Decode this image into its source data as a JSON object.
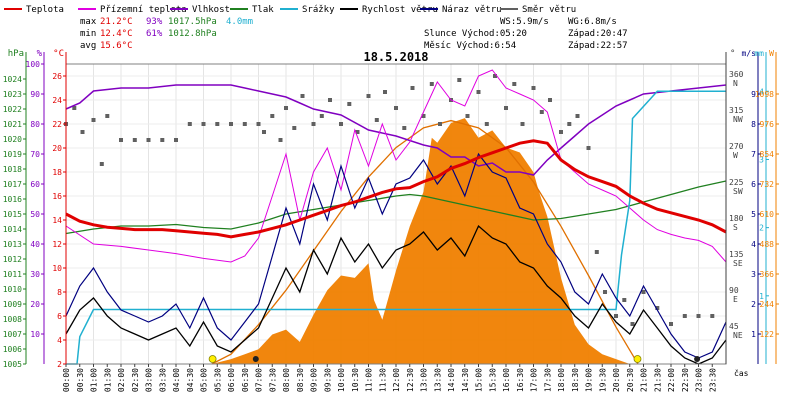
{
  "chart_data": {
    "type": "line",
    "title": "18.5.2018",
    "legend": [
      {
        "key": "temp",
        "label": "Teplota",
        "color": "#e00000"
      },
      {
        "key": "ground",
        "label": "Přízemní teplota",
        "color": "#e000e0"
      },
      {
        "key": "hum",
        "label": "Vlhkost",
        "color": "#8000c0"
      },
      {
        "key": "press",
        "label": "Tlak",
        "color": "#208020"
      },
      {
        "key": "rain",
        "label": "Srážky",
        "color": "#20b0d0"
      },
      {
        "key": "wind",
        "label": "Rychlost větru",
        "color": "#000000"
      },
      {
        "key": "gust",
        "label": "Náraz větru",
        "color": "#000080"
      },
      {
        "key": "dir",
        "label": "Směr větru",
        "color": "#606060"
      }
    ],
    "stats": {
      "max_label": "max",
      "min_label": "min",
      "avg_label": "avg",
      "temp_max": "21.2°C",
      "temp_min": "12.4°C",
      "temp_avg": "15.6°C",
      "hum_max": "93%",
      "hum_min": "61%",
      "press_max": "1017.5hPa",
      "press_min": "1012.8hPa",
      "rain_total": "4.0mm"
    },
    "info": {
      "ws": "WS:5.9m/s",
      "wg": "WG:6.8m/s",
      "sun": "Slunce Východ:05:20",
      "sunset": "Západ:20:47",
      "moon": "Měsíc Východ:6:54",
      "moonset": "Západ:22:57"
    },
    "x_label": "čas",
    "x_ticks": [
      "00:00",
      "00:30",
      "01:00",
      "01:30",
      "02:00",
      "02:30",
      "03:00",
      "03:30",
      "04:00",
      "04:30",
      "05:00",
      "05:30",
      "06:00",
      "06:30",
      "07:00",
      "07:30",
      "08:00",
      "08:30",
      "09:00",
      "09:30",
      "10:00",
      "10:30",
      "11:00",
      "11:30",
      "12:00",
      "12:30",
      "13:00",
      "13:30",
      "14:00",
      "14:30",
      "15:00",
      "15:30",
      "16:00",
      "16:30",
      "17:00",
      "17:30",
      "18:00",
      "18:30",
      "19:00",
      "19:30",
      "20:00",
      "20:30",
      "21:00",
      "21:30",
      "22:00",
      "22:30",
      "23:00",
      "23:30"
    ],
    "axes_left": {
      "hpa_unit": "hPa",
      "hpa_range": [
        1005,
        1025
      ],
      "hpa_ticks": [
        1005,
        1006,
        1007,
        1008,
        1009,
        1010,
        1011,
        1012,
        1013,
        1014,
        1015,
        1016,
        1017,
        1018,
        1019,
        1020,
        1021,
        1022,
        1023,
        1024
      ],
      "pct_unit": "%",
      "pct_range": [
        0,
        100
      ],
      "pct_ticks": [
        10,
        20,
        30,
        40,
        50,
        60,
        70,
        80,
        90,
        100
      ],
      "temp_unit": "°C",
      "temp_range": [
        2,
        27
      ],
      "temp_ticks": [
        2,
        4,
        6,
        8,
        10,
        12,
        14,
        16,
        18,
        20,
        22,
        24,
        26
      ]
    },
    "axes_right": {
      "deg_unit": "°",
      "deg_ticks": [
        {
          "v": 45,
          "t": "45",
          "d": "NE"
        },
        {
          "v": 90,
          "t": "90",
          "d": "E"
        },
        {
          "v": 135,
          "t": "135",
          "d": "SE"
        },
        {
          "v": 180,
          "t": "180",
          "d": "S"
        },
        {
          "v": 225,
          "t": "225",
          "d": "SW"
        },
        {
          "v": 270,
          "t": "270",
          "d": "W"
        },
        {
          "v": 315,
          "t": "315",
          "d": "NW"
        },
        {
          "v": 360,
          "t": "360",
          "d": "N"
        }
      ],
      "ms_unit": "m/s",
      "ms_range": [
        0,
        10
      ],
      "ms_ticks": [
        1,
        2,
        3,
        4,
        5,
        6,
        7,
        8,
        9
      ],
      "mm_unit": "mm",
      "mm_range": [
        0,
        4.4
      ],
      "mm_ticks": [
        1,
        2,
        3,
        4
      ],
      "w_unit": "W",
      "w_ticks": [
        122,
        244,
        366,
        488,
        610,
        732,
        854,
        976,
        1098
      ]
    },
    "series": {
      "temp": {
        "x": [
          0,
          0.5,
          1,
          1.5,
          2,
          2.5,
          3,
          3.5,
          4,
          4.5,
          5,
          5.5,
          6,
          6.5,
          7,
          7.5,
          8,
          8.5,
          9,
          9.5,
          10,
          10.5,
          11,
          11.5,
          12,
          12.5,
          13,
          13.5,
          14,
          14.5,
          15,
          15.5,
          16,
          16.5,
          17,
          17.5,
          18,
          18.5,
          19,
          19.5,
          20,
          20.5,
          21,
          21.5,
          22,
          22.5,
          23,
          23.5,
          24
        ],
        "y": [
          14.5,
          13.9,
          13.6,
          13.4,
          13.3,
          13.2,
          13.2,
          13.2,
          13.1,
          13.0,
          12.9,
          12.8,
          12.6,
          12.8,
          13.0,
          13.3,
          13.6,
          14.0,
          14.4,
          14.8,
          15.2,
          15.5,
          15.9,
          16.3,
          16.6,
          16.7,
          17.2,
          17.6,
          18.3,
          18.7,
          19.2,
          19.6,
          20.0,
          20.4,
          20.6,
          20.4,
          19.0,
          18.2,
          17.6,
          17.2,
          16.8,
          16.0,
          15.4,
          14.9,
          14.6,
          14.3,
          14.0,
          13.6,
          13.0
        ]
      },
      "ground": {
        "x": [
          0,
          1,
          2,
          3,
          4,
          5,
          6,
          6.5,
          7,
          7.5,
          8,
          8.5,
          9,
          9.5,
          10,
          10.5,
          11,
          11.5,
          12,
          12.5,
          13,
          13.5,
          14,
          14.5,
          15,
          15.5,
          16,
          16.5,
          17,
          17.5,
          18,
          18.5,
          19,
          19.5,
          20,
          20.5,
          21,
          21.5,
          22,
          22.5,
          23,
          23.5,
          24
        ],
        "y": [
          13.5,
          12.0,
          11.8,
          11.5,
          11.2,
          10.8,
          10.5,
          11.0,
          12.5,
          16.0,
          19.5,
          14.0,
          18.0,
          20.0,
          16.5,
          21.5,
          18.5,
          22.0,
          19.0,
          20.5,
          23.0,
          25.5,
          24.0,
          23.5,
          26.0,
          26.5,
          25.0,
          24.5,
          24.0,
          23.0,
          19.0,
          18.0,
          17.0,
          16.5,
          16.0,
          15.0,
          14.0,
          13.2,
          12.8,
          12.5,
          12.3,
          11.8,
          10.5
        ]
      },
      "hum": {
        "x": [
          0,
          0.5,
          1,
          2,
          3,
          4,
          5,
          6,
          6.5,
          7,
          8,
          8.5,
          9,
          10,
          11,
          12,
          13,
          13.5,
          14,
          14.5,
          15,
          15.5,
          16,
          16.5,
          17,
          17.5,
          18,
          18.5,
          19,
          19.5,
          20,
          20.5,
          21,
          22,
          23,
          24
        ],
        "y": [
          85,
          87,
          91,
          92,
          92,
          93,
          93,
          93,
          92,
          91,
          89,
          87,
          85,
          83,
          78,
          76,
          73,
          72,
          69,
          69,
          66,
          67,
          64,
          64,
          63,
          68,
          72,
          76,
          80,
          83,
          86,
          88,
          90,
          91,
          92,
          93
        ]
      },
      "press": {
        "x": [
          0,
          1,
          2,
          3,
          4,
          5,
          6,
          7,
          8,
          9,
          10,
          11,
          12,
          12.5,
          13,
          14,
          15,
          16,
          16.5,
          17,
          18,
          19,
          20,
          21,
          22,
          23,
          24
        ],
        "y": [
          1013.7,
          1014.0,
          1014.2,
          1014.2,
          1014.3,
          1014.1,
          1014.0,
          1014.4,
          1015.0,
          1015.3,
          1015.6,
          1015.9,
          1016.2,
          1016.3,
          1016.2,
          1015.8,
          1015.4,
          1015.0,
          1014.8,
          1014.6,
          1014.7,
          1015.0,
          1015.3,
          1015.8,
          1016.3,
          1016.8,
          1017.2
        ]
      },
      "rain": {
        "x": [
          0,
          0.4,
          0.5,
          1,
          6.5,
          19,
          20,
          20.2,
          20.5,
          20.6,
          21.5,
          24
        ],
        "y": [
          0.0,
          0.0,
          0.4,
          0.8,
          0.8,
          0.8,
          0.8,
          1.6,
          2.4,
          3.6,
          4.0,
          4.0
        ]
      },
      "sun_curve": {
        "x": [
          5.3,
          6,
          7,
          8,
          9,
          10,
          11,
          12,
          13,
          14,
          15,
          16,
          17,
          18,
          19,
          20,
          20.8
        ],
        "y": [
          0,
          40,
          160,
          300,
          460,
          620,
          760,
          880,
          960,
          990,
          960,
          880,
          740,
          560,
          360,
          150,
          0
        ]
      },
      "radiation": {
        "x": [
          5.3,
          6,
          6.5,
          7,
          7.5,
          8,
          8.5,
          9,
          9.5,
          10,
          10.5,
          11,
          11.2,
          11.5,
          12,
          12.5,
          13,
          13.3,
          13.5,
          14,
          14.5,
          15,
          15.5,
          16,
          16.5,
          17,
          17.2,
          17.5,
          18,
          18.5,
          19,
          19.5,
          20,
          20.5
        ],
        "y": [
          0,
          20,
          40,
          60,
          120,
          140,
          90,
          200,
          300,
          360,
          350,
          410,
          260,
          180,
          380,
          560,
          700,
          920,
          900,
          980,
          1000,
          920,
          950,
          880,
          860,
          780,
          700,
          600,
          350,
          160,
          80,
          40,
          20,
          0
        ]
      },
      "wind": {
        "x": [
          0,
          0.5,
          1,
          1.5,
          2,
          2.5,
          3,
          3.5,
          4,
          4.5,
          5,
          5.5,
          6,
          6.5,
          7,
          7.5,
          8,
          8.5,
          9,
          9.5,
          10,
          10.5,
          11,
          11.5,
          12,
          12.5,
          13,
          13.5,
          14,
          14.5,
          15,
          15.5,
          16,
          16.5,
          17,
          17.5,
          18,
          18.5,
          19,
          19.5,
          20,
          20.5,
          21,
          21.5,
          22,
          22.5,
          23,
          23.5,
          24
        ],
        "y": [
          1.0,
          1.8,
          2.2,
          1.6,
          1.2,
          1.0,
          0.8,
          1.0,
          1.2,
          0.6,
          1.4,
          0.6,
          0.4,
          0.8,
          1.2,
          2.2,
          3.2,
          2.4,
          3.8,
          3.0,
          4.2,
          3.4,
          4.0,
          3.2,
          3.8,
          4.0,
          4.4,
          3.8,
          4.2,
          3.6,
          4.6,
          4.2,
          4.0,
          3.4,
          3.2,
          2.6,
          2.2,
          1.6,
          1.2,
          2.0,
          1.4,
          1.0,
          1.8,
          1.2,
          0.6,
          0.2,
          0.0,
          0.2,
          0.8
        ]
      },
      "gust": {
        "x": [
          0,
          0.5,
          1,
          1.5,
          2,
          2.5,
          3,
          3.5,
          4,
          4.5,
          5,
          5.5,
          6,
          6.5,
          7,
          7.5,
          8,
          8.5,
          9,
          9.5,
          10,
          10.5,
          11,
          11.5,
          12,
          12.5,
          13,
          13.5,
          14,
          14.5,
          15,
          15.5,
          16,
          16.5,
          17,
          17.5,
          18,
          18.5,
          19,
          19.5,
          20,
          20.5,
          21,
          21.5,
          22,
          22.5,
          23,
          23.5,
          24
        ],
        "y": [
          1.6,
          2.6,
          3.2,
          2.4,
          1.8,
          1.6,
          1.4,
          1.6,
          2.0,
          1.2,
          2.2,
          1.2,
          0.8,
          1.4,
          2.0,
          3.6,
          5.2,
          4.0,
          6.0,
          4.8,
          6.6,
          5.2,
          6.2,
          5.0,
          6.0,
          6.2,
          6.8,
          6.0,
          6.6,
          5.6,
          7.0,
          6.4,
          6.2,
          5.2,
          5.0,
          4.0,
          3.4,
          2.4,
          2.0,
          3.0,
          2.2,
          1.6,
          2.6,
          1.8,
          1.0,
          0.4,
          0.2,
          0.4,
          1.4
        ]
      },
      "dir": {
        "x": [
          0,
          0.3,
          0.6,
          1,
          1.3,
          1.5,
          2,
          2.5,
          3,
          3.5,
          4,
          4.5,
          5,
          5.5,
          6,
          6.5,
          7,
          7.2,
          7.5,
          7.8,
          8,
          8.3,
          8.6,
          9,
          9.3,
          9.6,
          10,
          10.3,
          10.6,
          11,
          11.3,
          11.6,
          12,
          12.3,
          12.6,
          13,
          13.3,
          13.6,
          14,
          14.3,
          14.6,
          15,
          15.3,
          15.6,
          16,
          16.3,
          16.6,
          17,
          17.3,
          17.6,
          18,
          18.3,
          18.6,
          19,
          19.3,
          19.6,
          20,
          20.3,
          20.6,
          21,
          21.5,
          22,
          22.5,
          23,
          23.5
        ],
        "y": [
          300,
          320,
          290,
          305,
          250,
          310,
          280,
          280,
          280,
          280,
          280,
          300,
          300,
          300,
          300,
          300,
          300,
          290,
          310,
          280,
          320,
          295,
          335,
          300,
          310,
          330,
          300,
          325,
          290,
          335,
          305,
          340,
          320,
          295,
          345,
          310,
          350,
          300,
          330,
          355,
          310,
          340,
          300,
          360,
          320,
          350,
          300,
          345,
          315,
          330,
          290,
          300,
          310,
          270,
          140,
          90,
          60,
          80,
          50,
          90,
          70,
          50,
          60,
          60,
          60
        ]
      }
    }
  }
}
